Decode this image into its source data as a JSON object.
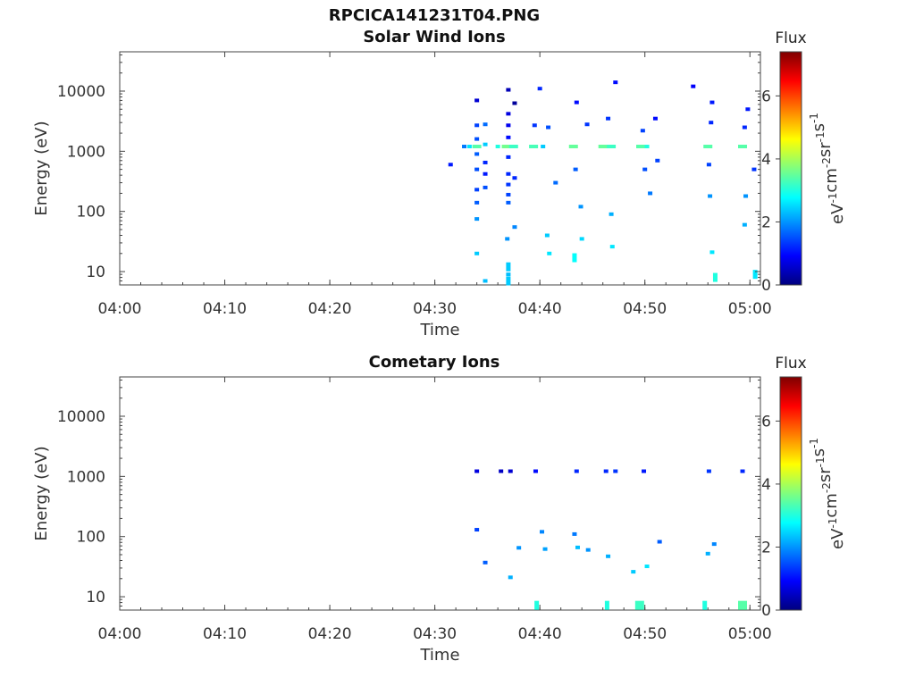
{
  "figure_title": "RPCICA141231T04.PNG",
  "chart_data": [
    {
      "type": "heatmap",
      "title": "Solar Wind Ions",
      "xlabel": "Time",
      "ylabel": "Energy (eV)",
      "x_ticks": [
        "04:00",
        "04:10",
        "04:20",
        "04:30",
        "04:40",
        "04:50",
        "05:00"
      ],
      "x_range_min": [
        0,
        61
      ],
      "y_ticks": [
        "10",
        "100",
        "1000",
        "10000"
      ],
      "y_scale": "log",
      "ylim": [
        6,
        45000
      ],
      "colorbar": {
        "label": "eV-1cm-2sr-1s-1",
        "title": "Flux",
        "ticks": [
          "0",
          "2",
          "4",
          "6"
        ],
        "range": [
          0,
          7.4
        ],
        "colormap": "jet"
      },
      "cells": [
        {
          "t": 32.8,
          "e": 1200,
          "v": 1.8
        },
        {
          "t": 33.3,
          "e": 1200,
          "v": 2.6
        },
        {
          "t": 34.0,
          "e": 1200,
          "v": 3.4
        },
        {
          "t": 34.0,
          "e": 7000,
          "v": 0.6
        },
        {
          "t": 34.0,
          "e": 2700,
          "v": 1.4
        },
        {
          "t": 34.0,
          "e": 1600,
          "v": 1.5
        },
        {
          "t": 34.0,
          "e": 900,
          "v": 1.6
        },
        {
          "t": 34.0,
          "e": 500,
          "v": 1.5
        },
        {
          "t": 34.0,
          "e": 230,
          "v": 1.4
        },
        {
          "t": 34.0,
          "e": 140,
          "v": 1.6
        },
        {
          "t": 34.0,
          "e": 75,
          "v": 2.0
        },
        {
          "t": 34.0,
          "e": 20,
          "v": 2.4
        },
        {
          "t": 31.5,
          "e": 600,
          "v": 1.1
        },
        {
          "t": 34.8,
          "e": 2800,
          "v": 1.7
        },
        {
          "t": 34.8,
          "e": 1300,
          "v": 2.4
        },
        {
          "t": 34.8,
          "e": 650,
          "v": 1.2
        },
        {
          "t": 34.8,
          "e": 420,
          "v": 1.1
        },
        {
          "t": 34.8,
          "e": 250,
          "v": 1.5
        },
        {
          "t": 34.8,
          "e": 7,
          "v": 2.3
        },
        {
          "t": 36.0,
          "e": 1200,
          "v": 3.0
        },
        {
          "t": 36.8,
          "e": 1200,
          "v": 3.6
        },
        {
          "t": 37.5,
          "e": 1200,
          "v": 3.2
        },
        {
          "t": 37.0,
          "e": 10500,
          "v": 0.4
        },
        {
          "t": 37.0,
          "e": 4200,
          "v": 0.7
        },
        {
          "t": 37.0,
          "e": 2700,
          "v": 0.8
        },
        {
          "t": 37.0,
          "e": 1700,
          "v": 1.0
        },
        {
          "t": 37.0,
          "e": 800,
          "v": 1.2
        },
        {
          "t": 37.0,
          "e": 420,
          "v": 1.2
        },
        {
          "t": 37.0,
          "e": 280,
          "v": 1.3
        },
        {
          "t": 37.0,
          "e": 190,
          "v": 1.4
        },
        {
          "t": 37.0,
          "e": 140,
          "v": 1.6
        },
        {
          "t": 37.0,
          "e": 12,
          "v": 2.4
        },
        {
          "t": 37.0,
          "e": 9,
          "v": 2.3
        },
        {
          "t": 37.0,
          "e": 7,
          "v": 2.4
        },
        {
          "t": 37.6,
          "e": 6300,
          "v": 0.2
        },
        {
          "t": 37.6,
          "e": 360,
          "v": 1.2
        },
        {
          "t": 37.6,
          "e": 55,
          "v": 1.9
        },
        {
          "t": 36.9,
          "e": 35,
          "v": 2.0
        },
        {
          "t": 39.4,
          "e": 1200,
          "v": 3.3
        },
        {
          "t": 40.3,
          "e": 1200,
          "v": 2.4
        },
        {
          "t": 39.5,
          "e": 2700,
          "v": 1.3
        },
        {
          "t": 40.0,
          "e": 11000,
          "v": 1.2
        },
        {
          "t": 40.8,
          "e": 2500,
          "v": 1.5
        },
        {
          "t": 41.5,
          "e": 300,
          "v": 1.7
        },
        {
          "t": 40.7,
          "e": 40,
          "v": 2.4
        },
        {
          "t": 40.9,
          "e": 20,
          "v": 2.6
        },
        {
          "t": 43.2,
          "e": 1200,
          "v": 3.5
        },
        {
          "t": 43.5,
          "e": 6500,
          "v": 1.0
        },
        {
          "t": 44.5,
          "e": 2800,
          "v": 1.3
        },
        {
          "t": 43.4,
          "e": 500,
          "v": 1.6
        },
        {
          "t": 43.9,
          "e": 120,
          "v": 2.0
        },
        {
          "t": 43.3,
          "e": 17,
          "v": 2.8
        },
        {
          "t": 44.0,
          "e": 35,
          "v": 2.5
        },
        {
          "t": 46.0,
          "e": 1200,
          "v": 3.5
        },
        {
          "t": 46.8,
          "e": 1200,
          "v": 3.2
        },
        {
          "t": 46.5,
          "e": 3500,
          "v": 1.3
        },
        {
          "t": 46.8,
          "e": 90,
          "v": 2.2
        },
        {
          "t": 47.2,
          "e": 14000,
          "v": 1.0
        },
        {
          "t": 46.9,
          "e": 26,
          "v": 2.6
        },
        {
          "t": 49.6,
          "e": 1200,
          "v": 3.4
        },
        {
          "t": 50.2,
          "e": 1200,
          "v": 3.0
        },
        {
          "t": 49.8,
          "e": 2200,
          "v": 1.4
        },
        {
          "t": 50.0,
          "e": 500,
          "v": 1.5
        },
        {
          "t": 50.5,
          "e": 200,
          "v": 1.8
        },
        {
          "t": 51.0,
          "e": 3500,
          "v": 1.0
        },
        {
          "t": 51.2,
          "e": 700,
          "v": 1.4
        },
        {
          "t": 54.6,
          "e": 12000,
          "v": 0.9
        },
        {
          "t": 56.0,
          "e": 1200,
          "v": 3.4
        },
        {
          "t": 56.3,
          "e": 3000,
          "v": 1.2
        },
        {
          "t": 56.4,
          "e": 6500,
          "v": 1.1
        },
        {
          "t": 56.1,
          "e": 600,
          "v": 1.4
        },
        {
          "t": 56.2,
          "e": 180,
          "v": 2.0
        },
        {
          "t": 56.4,
          "e": 21,
          "v": 2.6
        },
        {
          "t": 56.7,
          "e": 8,
          "v": 3.0
        },
        {
          "t": 59.3,
          "e": 1200,
          "v": 3.4
        },
        {
          "t": 59.5,
          "e": 2500,
          "v": 1.2
        },
        {
          "t": 59.8,
          "e": 5000,
          "v": 1.1
        },
        {
          "t": 59.6,
          "e": 180,
          "v": 2.0
        },
        {
          "t": 59.5,
          "e": 60,
          "v": 2.2
        },
        {
          "t": 60.4,
          "e": 500,
          "v": 1.3
        },
        {
          "t": 60.5,
          "e": 9,
          "v": 2.6
        }
      ]
    },
    {
      "type": "heatmap",
      "title": "Cometary Ions",
      "xlabel": "Time",
      "ylabel": "Energy (eV)",
      "x_ticks": [
        "04:00",
        "04:10",
        "04:20",
        "04:30",
        "04:40",
        "04:50",
        "05:00"
      ],
      "x_range_min": [
        0,
        61
      ],
      "y_ticks": [
        "10",
        "100",
        "1000",
        "10000"
      ],
      "y_scale": "log",
      "ylim": [
        6,
        45000
      ],
      "colorbar": {
        "label": "eV-1cm-2sr-1s-1",
        "title": "Flux",
        "ticks": [
          "0",
          "2",
          "4",
          "6"
        ],
        "range": [
          0,
          7.4
        ],
        "colormap": "jet"
      },
      "cells": [
        {
          "t": 34.0,
          "e": 1220,
          "v": 0.7
        },
        {
          "t": 36.3,
          "e": 1220,
          "v": 0.5
        },
        {
          "t": 37.2,
          "e": 1220,
          "v": 0.6
        },
        {
          "t": 39.6,
          "e": 1220,
          "v": 1.0
        },
        {
          "t": 43.5,
          "e": 1220,
          "v": 1.2
        },
        {
          "t": 46.3,
          "e": 1220,
          "v": 1.2
        },
        {
          "t": 47.2,
          "e": 1220,
          "v": 1.3
        },
        {
          "t": 49.9,
          "e": 1220,
          "v": 1.1
        },
        {
          "t": 56.1,
          "e": 1220,
          "v": 1.3
        },
        {
          "t": 59.3,
          "e": 1220,
          "v": 1.2
        },
        {
          "t": 34.0,
          "e": 130,
          "v": 1.4
        },
        {
          "t": 34.8,
          "e": 37,
          "v": 1.6
        },
        {
          "t": 37.2,
          "e": 21,
          "v": 2.2
        },
        {
          "t": 38.0,
          "e": 65,
          "v": 2.0
        },
        {
          "t": 40.2,
          "e": 120,
          "v": 1.9
        },
        {
          "t": 40.5,
          "e": 62,
          "v": 2.1
        },
        {
          "t": 43.3,
          "e": 110,
          "v": 1.8
        },
        {
          "t": 43.6,
          "e": 66,
          "v": 2.3
        },
        {
          "t": 44.6,
          "e": 60,
          "v": 2.0
        },
        {
          "t": 46.5,
          "e": 47,
          "v": 2.2
        },
        {
          "t": 48.9,
          "e": 26,
          "v": 2.4
        },
        {
          "t": 50.2,
          "e": 32,
          "v": 2.6
        },
        {
          "t": 51.4,
          "e": 82,
          "v": 1.6
        },
        {
          "t": 56.0,
          "e": 52,
          "v": 2.2
        },
        {
          "t": 56.6,
          "e": 75,
          "v": 1.9
        },
        {
          "t": 39.7,
          "e": 7.2,
          "v": 3.0
        },
        {
          "t": 46.4,
          "e": 7.2,
          "v": 3.0
        },
        {
          "t": 49.5,
          "e": 7.2,
          "v": 3.2
        },
        {
          "t": 55.7,
          "e": 7.2,
          "v": 3.0
        },
        {
          "t": 59.3,
          "e": 7.2,
          "v": 3.4
        }
      ]
    }
  ]
}
